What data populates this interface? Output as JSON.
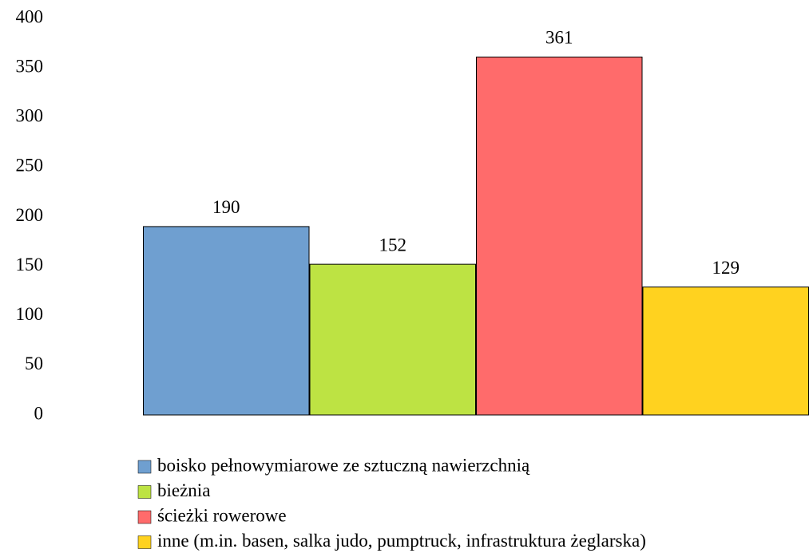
{
  "chart_data": {
    "type": "bar",
    "categories": [
      null
    ],
    "series": [
      {
        "name": "boisko pełnowymiarowe ze sztuczną nawierzchnią",
        "color": "#6f9fd0",
        "values": [
          190
        ]
      },
      {
        "name": "bieżnia",
        "color": "#bde343",
        "values": [
          152
        ]
      },
      {
        "name": "ścieżki rowerowe",
        "color": "#ff6b6b",
        "values": [
          361
        ]
      },
      {
        "name": "inne (m.in. basen, salka judo, pumptruck, infrastruktura żeglarska)",
        "color": "#ffd21f",
        "values": [
          129
        ]
      }
    ],
    "ylim": [
      0,
      400
    ],
    "yticks": [
      0,
      50,
      100,
      150,
      200,
      250,
      300,
      350,
      400
    ],
    "grid": false,
    "legend": "bottom",
    "value_labels_shown": true
  }
}
